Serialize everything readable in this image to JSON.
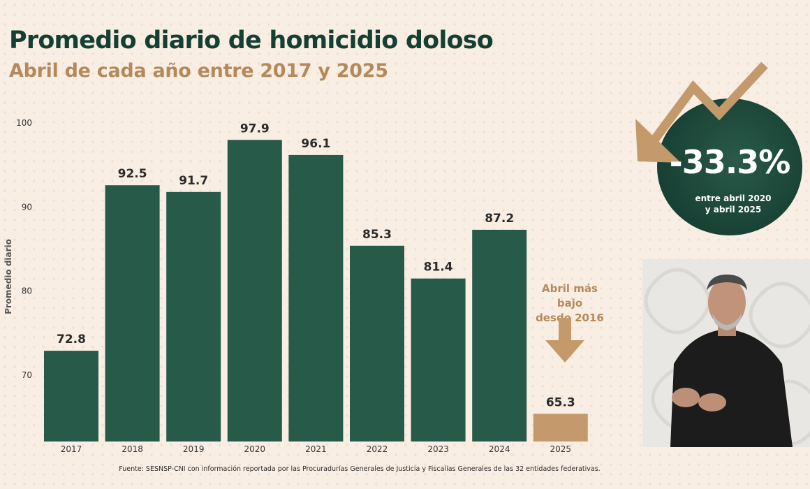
{
  "title": "Promedio diario de homicidio doloso",
  "subtitle": "Abril de cada año entre 2017 y 2025",
  "source": "Fuente: SESNSP-CNI con información reportada por las Procuradurías Generales de Justicia y Fiscalías Generales de las 32 entidades federativas.",
  "annotation": {
    "line1": "Abril más bajo",
    "line2": "desde 2016"
  },
  "badge": {
    "value": "-33.3%",
    "caption_line1": "entre abril 2020",
    "caption_line2": "y abril 2025"
  },
  "colors": {
    "bar": "#275a48",
    "highlight": "#c49a6c",
    "title": "#163f33",
    "subtitle": "#b48a5c"
  },
  "chart_data": {
    "type": "bar",
    "title": "Promedio diario de homicidio doloso",
    "subtitle": "Abril de cada año entre 2017 y 2025",
    "ylabel": "Promedio diario",
    "xlabel": "",
    "categories": [
      "2017",
      "2018",
      "2019",
      "2020",
      "2021",
      "2022",
      "2023",
      "2024",
      "2025"
    ],
    "values": [
      72.8,
      92.5,
      91.7,
      97.9,
      96.1,
      85.3,
      81.4,
      87.2,
      65.3
    ],
    "value_labels": [
      "72.8",
      "92.5",
      "91.7",
      "97.9",
      "96.1",
      "85.3",
      "81.4",
      "87.2",
      "65.3"
    ],
    "highlight_index": 8,
    "ylim": [
      62,
      100
    ],
    "yticks": [
      70,
      80,
      90,
      100
    ],
    "grid": false
  }
}
